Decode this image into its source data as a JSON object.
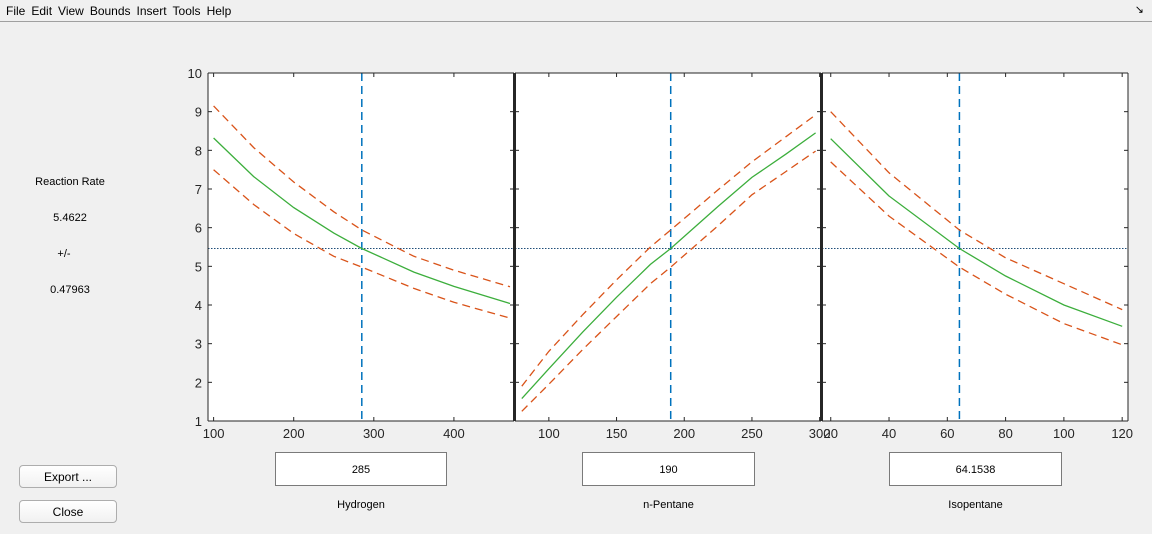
{
  "menu": [
    "File",
    "Edit",
    "View",
    "Bounds",
    "Insert",
    "Tools",
    "Help"
  ],
  "dock_icon": "dock-arrow-icon",
  "sidebar": {
    "response_label": "Reaction Rate",
    "response_value": "5.4622",
    "plusminus": "+/-",
    "ci_halfwidth": "0.47963"
  },
  "buttons": {
    "export": "Export ...",
    "close": "Close"
  },
  "factors": [
    {
      "name": "Hydrogen",
      "value": "285"
    },
    {
      "name": "n-Pentane",
      "value": "190"
    },
    {
      "name": "Isopentane",
      "value": "64.1538"
    }
  ],
  "colors": {
    "prediction": "#3cae3c",
    "bounds": "#d95319",
    "crosshair_v": "#0072bd",
    "crosshair_h": "#1f4e79"
  },
  "chart_data": {
    "type": "line",
    "subtype": "prediction-slice-plot",
    "ylim": [
      1,
      10
    ],
    "yticks": [
      1,
      2,
      3,
      4,
      5,
      6,
      7,
      8,
      9,
      10
    ],
    "current_response": 5.4622,
    "panels": [
      {
        "factor": "Hydrogen",
        "xlim": [
          93,
          475
        ],
        "xticks": [
          100,
          200,
          300,
          400
        ],
        "current_x": 285,
        "x": [
          100,
          150,
          200,
          250,
          285,
          350,
          400,
          470
        ],
        "prediction": [
          8.32,
          7.32,
          6.52,
          5.86,
          5.46,
          4.85,
          4.48,
          4.04
        ],
        "upper": [
          9.15,
          8.07,
          7.18,
          6.41,
          5.94,
          5.26,
          4.9,
          4.47
        ],
        "lower": [
          7.5,
          6.6,
          5.85,
          5.26,
          4.98,
          4.43,
          4.07,
          3.66
        ]
      },
      {
        "factor": "n-Pentane",
        "xlim": [
          75,
          301
        ],
        "xticks": [
          100,
          150,
          200,
          250,
          300
        ],
        "current_x": 190,
        "x": [
          80,
          100,
          125,
          150,
          175,
          190,
          225,
          250,
          275,
          297
        ],
        "prediction": [
          1.58,
          2.35,
          3.3,
          4.2,
          5.05,
          5.46,
          6.55,
          7.3,
          7.9,
          8.45
        ],
        "upper": [
          1.9,
          2.8,
          3.75,
          4.65,
          5.5,
          5.94,
          6.98,
          7.7,
          8.35,
          8.92
        ],
        "lower": [
          1.25,
          1.95,
          2.85,
          3.7,
          4.55,
          4.98,
          6.05,
          6.85,
          7.45,
          7.98
        ]
      },
      {
        "factor": "Isopentane",
        "xlim": [
          17,
          122
        ],
        "xticks": [
          20,
          40,
          60,
          80,
          100,
          120
        ],
        "current_x": 64.1538,
        "x": [
          20,
          40,
          64.1538,
          80,
          100,
          120
        ],
        "prediction": [
          8.3,
          6.82,
          5.46,
          4.75,
          4.0,
          3.45
        ],
        "upper": [
          9.0,
          7.42,
          5.94,
          5.22,
          4.55,
          3.88
        ],
        "lower": [
          7.7,
          6.3,
          4.98,
          4.28,
          3.52,
          2.97
        ]
      }
    ]
  }
}
